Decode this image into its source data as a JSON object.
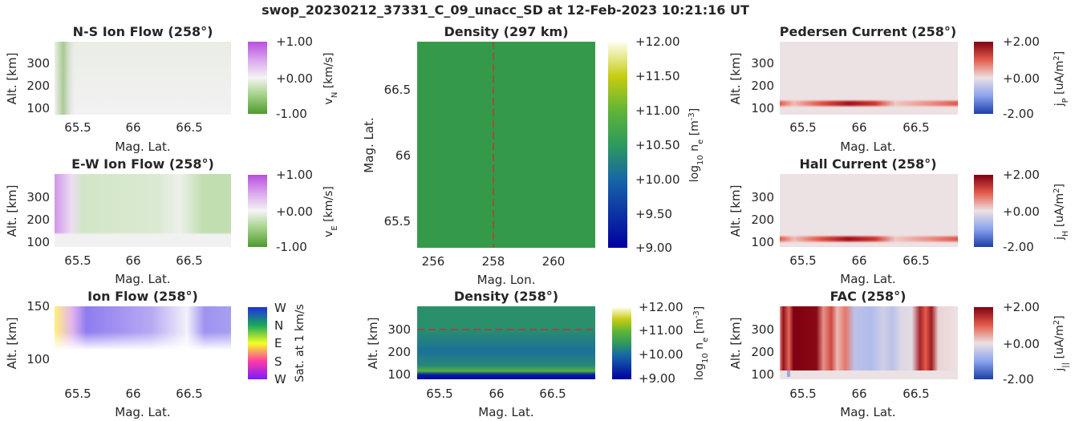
{
  "suptitle": "swop_20230212_37331_C_09_unacc_SD at 12-Feb-2023 10:21:16 UT",
  "colors": {
    "green": "#3a9d4c",
    "purple": "#c479e6",
    "red": "#b2182b",
    "blue": "#2166ac",
    "dashed_line": "#d62728"
  },
  "chart_data": [
    {
      "id": "ns-ion-flow",
      "type": "heatmap",
      "title": "N-S Ion Flow (258°)",
      "xlabel": "Mag. Lat.",
      "ylabel": "Alt. [km]",
      "xlim": [
        65.3,
        66.85
      ],
      "ylim": [
        80,
        400
      ],
      "x_ticks": [
        "65.5",
        "66",
        "66.5"
      ],
      "y_ticks": [
        "100",
        "200",
        "300"
      ],
      "colorbar": {
        "label": "vₙ [km/s]",
        "label_main": "v",
        "label_sub": "N",
        "label_unit": "[km/s]",
        "ticks": [
          "+1.00",
          "+0.00",
          "-1.00"
        ],
        "range": [
          -1,
          1
        ],
        "colormap": "PRGn"
      },
      "description_values": {
        "background": 0.02,
        "low_altitude_band_km": [
          110,
          125
        ],
        "band_value": 0.1
      }
    },
    {
      "id": "ew-ion-flow",
      "type": "heatmap",
      "title": "E-W Ion Flow (258°)",
      "xlabel": "Mag. Lat.",
      "ylabel": "Alt. [km]",
      "xlim": [
        65.3,
        66.85
      ],
      "ylim": [
        80,
        400
      ],
      "x_ticks": [
        "65.5",
        "66",
        "66.5"
      ],
      "y_ticks": [
        "100",
        "200",
        "300"
      ],
      "colorbar": {
        "label_main": "v",
        "label_sub": "E",
        "label_unit": "[km/s]",
        "ticks": [
          "+1.00",
          "+0.00",
          "-1.00"
        ],
        "range": [
          -1,
          1
        ],
        "colormap": "PRGn"
      },
      "profile": [
        {
          "lat": 65.3,
          "value": 0.6
        },
        {
          "lat": 65.45,
          "value": 0.15
        },
        {
          "lat": 65.55,
          "value": -0.2
        },
        {
          "lat": 66.2,
          "value": -0.15
        },
        {
          "lat": 66.4,
          "value": -0.05
        },
        {
          "lat": 66.6,
          "value": -0.3
        },
        {
          "lat": 66.85,
          "value": -0.3
        }
      ]
    },
    {
      "id": "ion-flow",
      "type": "heatmap",
      "title": "Ion Flow (258°)",
      "xlabel": "Mag. Lat.",
      "ylabel": "Alt. [km]",
      "xlim": [
        65.3,
        66.85
      ],
      "ylim": [
        80,
        150
      ],
      "x_ticks": [
        "65.5",
        "66",
        "66.5"
      ],
      "y_ticks": [
        "100",
        "150"
      ],
      "colorbar": {
        "label": "Sat. at 1 km/s",
        "ticks": [
          "W",
          "N",
          "E",
          "S",
          "W"
        ],
        "colormap": "hsv-direction"
      }
    },
    {
      "id": "density-297",
      "type": "heatmap",
      "title": "Density (297 km)",
      "xlabel": "Mag. Lon.",
      "ylabel": "Mag. Lat.",
      "xlim": [
        255.5,
        261.4
      ],
      "ylim": [
        65.3,
        66.85
      ],
      "x_ticks": [
        "256",
        "258",
        "260"
      ],
      "y_ticks": [
        "65.5",
        "66",
        "66.5"
      ],
      "value": 10.4,
      "marker_lon": 258,
      "colorbar": {
        "label_main": "log",
        "label_sub": "10",
        "label_rest": " n",
        "label_sub2": "e",
        "label_unit": " [m",
        "label_sup": "-3",
        "label_end": "]",
        "ticks": [
          "+12.00",
          "+11.50",
          "+11.00",
          "+10.50",
          "+10.00",
          "+9.50",
          "+9.00"
        ],
        "range": [
          9,
          12
        ],
        "colormap": "viridis-like"
      }
    },
    {
      "id": "density-258",
      "type": "heatmap",
      "title": "Density (258°)",
      "xlabel": "Mag. Lat.",
      "ylabel": "Alt. [km]",
      "xlim": [
        65.3,
        66.85
      ],
      "ylim": [
        80,
        390
      ],
      "x_ticks": [
        "65.5",
        "66",
        "66.5"
      ],
      "y_ticks": [
        "100",
        "200",
        "300"
      ],
      "marker_alt": 297,
      "colorbar": {
        "label_main": "log",
        "label_sub": "10",
        "label_rest": " n",
        "label_sub2": "e",
        "label_unit": " [m",
        "label_sup": "-3",
        "label_end": "]",
        "ticks": [
          "+12.00",
          "+11.00",
          "+10.00",
          "+9.00"
        ],
        "range": [
          9,
          12
        ],
        "colormap": "viridis-like"
      },
      "altitude_profile": [
        {
          "alt": 85,
          "value": 9.1
        },
        {
          "alt": 100,
          "value": 9.3
        },
        {
          "alt": 115,
          "value": 10.9
        },
        {
          "alt": 140,
          "value": 10.3
        },
        {
          "alt": 200,
          "value": 10.1
        },
        {
          "alt": 300,
          "value": 10.4
        },
        {
          "alt": 390,
          "value": 10.4
        }
      ]
    },
    {
      "id": "pedersen-current",
      "type": "heatmap",
      "title": "Pedersen Current (258°)",
      "xlabel": "Mag. Lat.",
      "ylabel": "Alt. [km]",
      "xlim": [
        65.3,
        66.85
      ],
      "ylim": [
        80,
        400
      ],
      "x_ticks": [
        "65.5",
        "66",
        "66.5"
      ],
      "y_ticks": [
        "100",
        "200",
        "300"
      ],
      "colorbar": {
        "label_main": "j",
        "label_sub": "P",
        "label_unit": " [uA/m",
        "label_sup": "2",
        "label_end": "]",
        "ticks": [
          "+2.00",
          "+0.00",
          "-2.00"
        ],
        "range": [
          -2,
          2
        ],
        "colormap": "RdBu"
      },
      "band": {
        "alt_km": 122,
        "peak_lat": 65.9,
        "peak_value": 2.0
      }
    },
    {
      "id": "hall-current",
      "type": "heatmap",
      "title": "Hall Current (258°)",
      "xlabel": "Mag. Lat.",
      "ylabel": "Alt. [km]",
      "xlim": [
        65.3,
        66.85
      ],
      "ylim": [
        80,
        400
      ],
      "x_ticks": [
        "65.5",
        "66",
        "66.5"
      ],
      "y_ticks": [
        "100",
        "200",
        "300"
      ],
      "colorbar": {
        "label_main": "j",
        "label_sub": "H",
        "label_unit": " [uA/m",
        "label_sup": "2",
        "label_end": "]",
        "ticks": [
          "+2.00",
          "+0.00",
          "-2.00"
        ],
        "range": [
          -2,
          2
        ],
        "colormap": "RdBu"
      },
      "band": {
        "alt_km": 107,
        "peak_lat": 65.9,
        "peak_value": 2.0
      }
    },
    {
      "id": "fac",
      "type": "heatmap",
      "title": "FAC (258°)",
      "xlabel": "Mag. Lat.",
      "ylabel": "Alt. [km]",
      "xlim": [
        65.3,
        66.85
      ],
      "ylim": [
        80,
        400
      ],
      "x_ticks": [
        "65.5",
        "66",
        "66.5"
      ],
      "y_ticks": [
        "100",
        "200",
        "300"
      ],
      "colorbar": {
        "label_main": "j",
        "label_sub": "||",
        "label_unit": " [uA/m",
        "label_sup": "2",
        "label_end": "]",
        "ticks": [
          "+2.00",
          "+0.00",
          "-2.00"
        ],
        "range": [
          -2,
          2
        ],
        "colormap": "RdBu"
      },
      "profile": [
        {
          "lat": 65.3,
          "value": 0.6
        },
        {
          "lat": 65.33,
          "value": 1.8
        },
        {
          "lat": 65.38,
          "value": 0.9
        },
        {
          "lat": 65.42,
          "value": 2.0
        },
        {
          "lat": 65.62,
          "value": 1.9
        },
        {
          "lat": 65.68,
          "value": 0.6
        },
        {
          "lat": 65.75,
          "value": 1.2
        },
        {
          "lat": 65.8,
          "value": 0.3
        },
        {
          "lat": 65.87,
          "value": 0.8
        },
        {
          "lat": 65.95,
          "value": -0.5
        },
        {
          "lat": 66.1,
          "value": -0.6
        },
        {
          "lat": 66.2,
          "value": -0.3
        },
        {
          "lat": 66.28,
          "value": -0.5
        },
        {
          "lat": 66.36,
          "value": -0.15
        },
        {
          "lat": 66.45,
          "value": -0.1
        },
        {
          "lat": 66.52,
          "value": 1.6
        },
        {
          "lat": 66.57,
          "value": 1.0
        },
        {
          "lat": 66.62,
          "value": 1.7
        },
        {
          "lat": 66.68,
          "value": 0.1
        },
        {
          "lat": 66.85,
          "value": 0.0
        }
      ]
    }
  ]
}
